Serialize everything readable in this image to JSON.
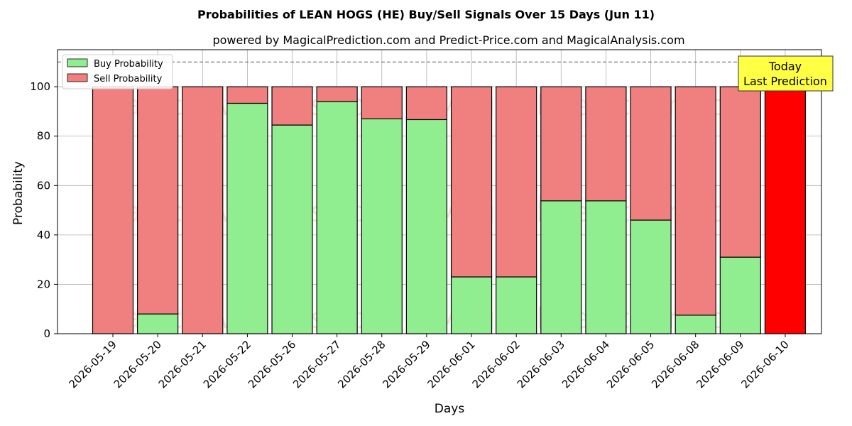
{
  "chart_data": {
    "type": "bar",
    "stacked": true,
    "title": "Probabilities of LEAN HOGS (HE) Buy/Sell Signals Over 15 Days (Jun 11)",
    "subtitle": "powered by MagicalPrediction.com and Predict-Price.com and MagicalAnalysis.com",
    "xlabel": "Days",
    "ylabel": "Probability",
    "ylim": [
      0,
      115
    ],
    "yticks": [
      0,
      20,
      40,
      60,
      80,
      100
    ],
    "grid": true,
    "legend_position": "top-left",
    "reference_line": 110,
    "categories": [
      "2026-05-19",
      "2026-05-20",
      "2026-05-21",
      "2026-05-22",
      "2026-05-26",
      "2026-05-27",
      "2026-05-28",
      "2026-05-29",
      "2026-06-01",
      "2026-06-02",
      "2026-06-03",
      "2026-06-04",
      "2026-06-05",
      "2026-06-08",
      "2026-06-09",
      "2026-06-10"
    ],
    "series": [
      {
        "name": "Buy Probability",
        "color": "#90ee90",
        "values": [
          0,
          8,
          0,
          93.3,
          84.5,
          94,
          87,
          86.7,
          23,
          23,
          53.8,
          53.8,
          46,
          7.5,
          31,
          0
        ]
      },
      {
        "name": "Sell Probability",
        "color": "#f08080",
        "values": [
          100,
          92,
          100,
          6.7,
          15.5,
          6,
          13,
          13.3,
          77,
          77,
          46.2,
          46.2,
          54,
          92.5,
          69,
          100
        ]
      }
    ],
    "highlight": {
      "index": 15,
      "color": "#ff0000"
    },
    "annotation": {
      "lines": [
        "Today",
        "Last Prediction"
      ],
      "background": "#ffff44"
    },
    "watermarks": [
      "MagicalAnalysis.com",
      "MagicalPrediction.com"
    ]
  }
}
